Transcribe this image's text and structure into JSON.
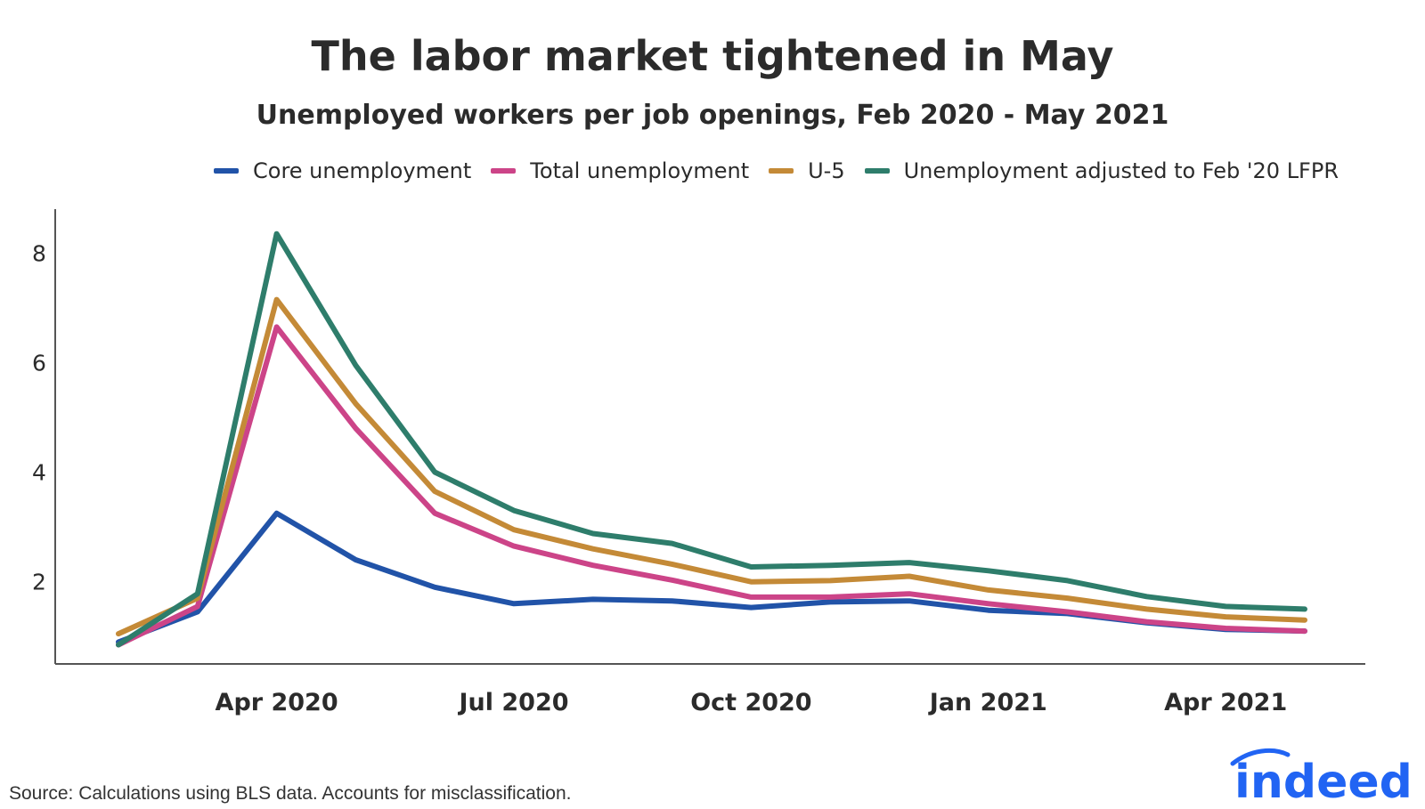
{
  "chart_data": {
    "type": "line",
    "title": "The labor market tightened in May",
    "subtitle": "Unemployed workers per job openings, Feb 2020 - May 2021",
    "xlabel": "",
    "ylabel": "",
    "x": [
      "2020-02",
      "2020-03",
      "2020-04",
      "2020-05",
      "2020-06",
      "2020-07",
      "2020-08",
      "2020-09",
      "2020-10",
      "2020-11",
      "2020-12",
      "2021-01",
      "2021-02",
      "2021-03",
      "2021-04",
      "2021-05"
    ],
    "x_ticks": [
      "Apr 2020",
      "Jul 2020",
      "Oct 2020",
      "Jan 2021",
      "Apr 2021"
    ],
    "x_tick_positions": [
      "2020-04",
      "2020-07",
      "2020-10",
      "2021-01",
      "2021-04"
    ],
    "y_ticks": [
      "2",
      "4",
      "6",
      "8"
    ],
    "y_tick_values": [
      2,
      4,
      6,
      8
    ],
    "ylim": [
      0.5,
      8.8
    ],
    "grid": false,
    "legend_position": "top",
    "series": [
      {
        "name": "Core unemployment",
        "color": "#2153a8",
        "values": [
          0.9,
          1.45,
          3.25,
          2.4,
          1.9,
          1.6,
          1.68,
          1.65,
          1.53,
          1.63,
          1.65,
          1.48,
          1.42,
          1.25,
          1.13,
          1.1
        ]
      },
      {
        "name": "Total unemployment",
        "color": "#cc4488",
        "values": [
          0.85,
          1.55,
          6.65,
          4.8,
          3.25,
          2.65,
          2.3,
          2.03,
          1.72,
          1.72,
          1.78,
          1.6,
          1.45,
          1.27,
          1.15,
          1.1
        ]
      },
      {
        "name": "U-5",
        "color": "#c48a37",
        "values": [
          1.05,
          1.7,
          7.15,
          5.25,
          3.65,
          2.95,
          2.6,
          2.32,
          2.0,
          2.02,
          2.1,
          1.85,
          1.7,
          1.5,
          1.36,
          1.3
        ]
      },
      {
        "name": "Unemployment adjusted to Feb '20 LFPR",
        "color": "#2e7d6b",
        "values": [
          0.85,
          1.78,
          8.35,
          5.95,
          4.0,
          3.3,
          2.88,
          2.7,
          2.27,
          2.3,
          2.35,
          2.2,
          2.02,
          1.73,
          1.55,
          1.5
        ]
      }
    ]
  },
  "source_note": "Source: Calculations using BLS data. Accounts for misclassification.",
  "logo_text": "indeed"
}
